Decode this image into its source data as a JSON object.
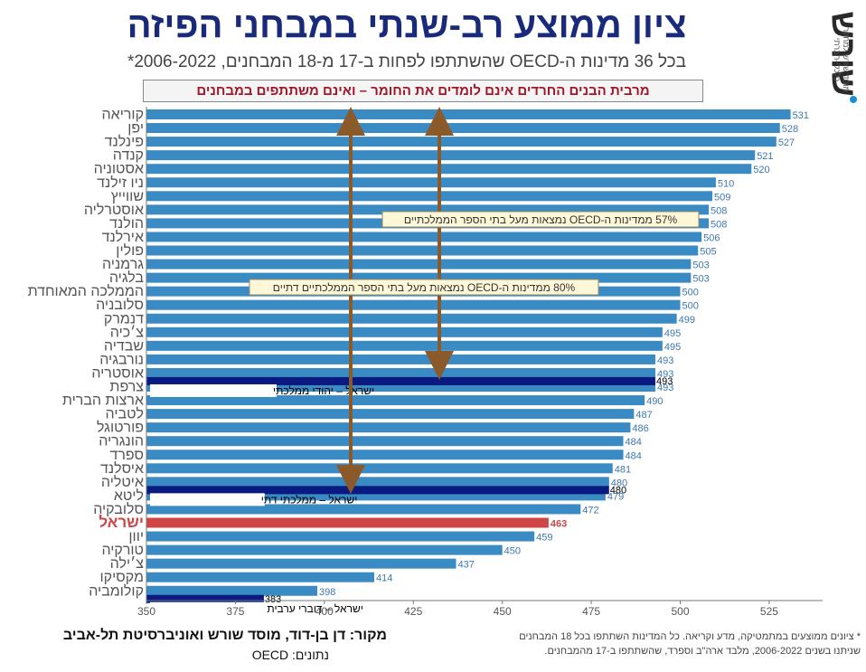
{
  "header": {
    "title": "ציון ממוצע רב-שנתי במבחני הפיזה",
    "subtitle": "בכל 36 מדינות ה-OECD שהשתתפו לפחות ב-17 מ-18 המבחנים, 2006-2022*",
    "banner": "מרבית הבנים החרדים אינם לומדים את החומר – ואינם משתתפים במבחנים"
  },
  "logo": {
    "word": "שורש",
    "sub": "מוסד שורש למחקר כלכלי-חברתי"
  },
  "footer": {
    "source": "מקור: דן בן-דוד, מוסד שורש ואוניברסיטת תל-אביב",
    "data_source": "נתונים: OECD",
    "footnote_line1": "* ציונים ממוצעים במתמטיקה, מדע וקריאה. כל המדינות השתתפו בכל 18 המבחנים",
    "footnote_line2": "שניתנו בשנים 2006-2022, מלבד ארה\"ב וספרד, שהשתתפו ב-17 מהמבחנים."
  },
  "colors": {
    "bar": "#3a8ac3",
    "israel": "#d04545",
    "highlight": "#0a1a80",
    "arrow": "#8b5a2b",
    "value_text": "#3b77b0",
    "axis": "#777777"
  },
  "chart_data": {
    "type": "bar",
    "orientation": "horizontal",
    "xlim": [
      350,
      540
    ],
    "x_ticks": [
      350,
      375,
      400,
      425,
      450,
      475,
      500,
      525
    ],
    "categories": [
      "קוריאה",
      "יפן",
      "פינלנד",
      "קנדה",
      "אסטוניה",
      "ניו זילנד",
      "שווייץ",
      "אוסטרליה",
      "הולנד",
      "אירלנד",
      "פולין",
      "גרמניה",
      "בלגיה",
      "הממלכה המאוחדת",
      "סלובניה",
      "דנמרק",
      "צ׳כיה",
      "שבדיה",
      "נורבגיה",
      "אוסטריה",
      "צרפת",
      "ארצות הברית",
      "לטביה",
      "פורטוגל",
      "הונגריה",
      "ספרד",
      "איסלנד",
      "איטליה",
      "ליטא",
      "סלובקיה",
      "ישראל",
      "יוון",
      "טורקיה",
      "צ׳ילה",
      "מקסיקו",
      "קולומביה"
    ],
    "values": [
      531,
      528,
      527,
      521,
      520,
      510,
      509,
      508,
      508,
      506,
      505,
      503,
      503,
      500,
      500,
      499,
      495,
      495,
      493,
      493,
      493,
      490,
      487,
      486,
      484,
      484,
      481,
      480,
      479,
      472,
      463,
      459,
      450,
      437,
      414,
      398
    ],
    "highlight_category": "ישראל",
    "overlays": [
      {
        "label": "ישראל – יהודי ממלכתי",
        "value": 493,
        "after_category": "אוסטריה"
      },
      {
        "label": "ישראל – ממלכתי דתי",
        "value": 480,
        "after_category": "איטליה"
      },
      {
        "label": "ישראל – דוברי ערבית",
        "value": 383,
        "after_category": "קולומביה"
      }
    ],
    "annotations": [
      {
        "text": "57% ממדינות ה-OECD נמצאות מעל בתי הספר הממלכתיים"
      },
      {
        "text": "80% ממדינות ה-OECD נמצאות מעל בתי הספר הממלכתיים דתיים"
      }
    ]
  }
}
